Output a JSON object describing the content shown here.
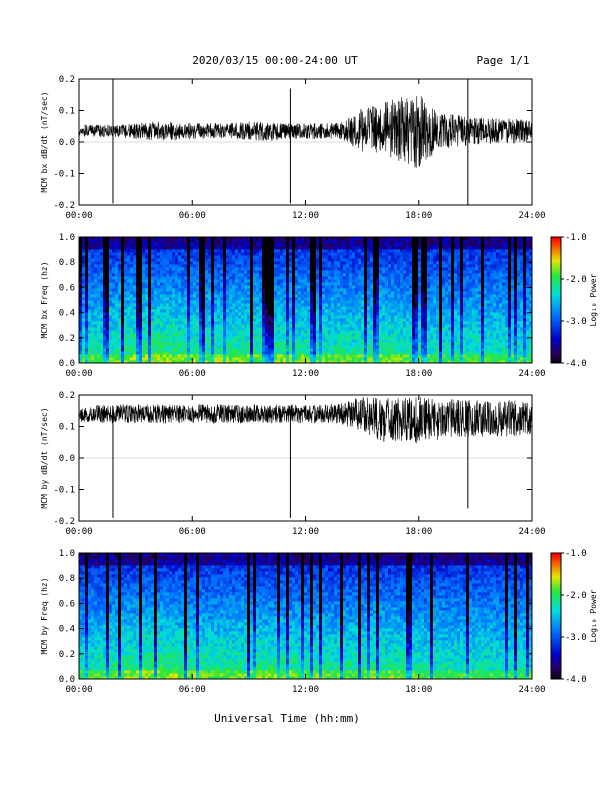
{
  "header": {
    "title": "2020/03/15  00:00-24:00 UT",
    "page": "Page 1/1"
  },
  "footer": {
    "xlabel": "Universal Time (hh:mm)"
  },
  "chart_data": [
    {
      "type": "line",
      "ylabel": "MCM bx dB/dt (nT/sec)",
      "xticks": [
        "00:00",
        "06:00",
        "12:00",
        "18:00",
        "24:00"
      ],
      "yticks": [
        "-0.2",
        "-0.1",
        "0.0",
        "0.1",
        "0.2"
      ],
      "xlim": [
        0,
        24
      ],
      "ylim": [
        -0.2,
        0.2
      ],
      "series": [
        {
          "x": [
            0,
            1,
            2,
            3,
            4,
            5,
            6,
            7,
            8,
            9,
            10,
            11,
            12,
            13,
            14,
            15,
            16,
            17,
            18,
            19,
            20,
            21,
            22,
            23,
            24
          ],
          "center": [
            0.035,
            0.035,
            0.035,
            0.035,
            0.035,
            0.033,
            0.035,
            0.035,
            0.035,
            0.035,
            0.033,
            0.035,
            0.035,
            0.035,
            0.035,
            0.038,
            0.04,
            0.04,
            0.035,
            0.035,
            0.035,
            0.035,
            0.035,
            0.035,
            0.035
          ],
          "envelope": [
            0.02,
            0.02,
            0.02,
            0.025,
            0.03,
            0.03,
            0.025,
            0.025,
            0.025,
            0.03,
            0.03,
            0.025,
            0.025,
            0.025,
            0.03,
            0.07,
            0.08,
            0.11,
            0.12,
            0.06,
            0.05,
            0.045,
            0.04,
            0.04,
            0.035
          ]
        }
      ],
      "spikes": [
        {
          "x": 1.8,
          "min": -0.195,
          "max": 0.2
        },
        {
          "x": 11.2,
          "min": -0.195,
          "max": 0.17
        },
        {
          "x": 20.6,
          "min": -0.2,
          "max": 0.2
        }
      ]
    },
    {
      "type": "heatmap",
      "ylabel": "MCM bx Freq (hz)",
      "colorbar_label": "Log₁₀ Power",
      "xticks": [
        "00:00",
        "06:00",
        "12:00",
        "18:00",
        "24:00"
      ],
      "yticks": [
        "0.0",
        "0.2",
        "0.4",
        "0.6",
        "0.8",
        "1.0"
      ],
      "cticks": [
        "-1.0",
        "-2.0",
        "-3.0",
        "-4.0"
      ],
      "xlim": [
        0,
        24
      ],
      "ylim": [
        0,
        1.0
      ],
      "clim": [
        -4.0,
        -1.0
      ]
    },
    {
      "type": "line",
      "ylabel": "MCM by dB/dt (nT/sec)",
      "xticks": [
        "00:00",
        "06:00",
        "12:00",
        "18:00",
        "24:00"
      ],
      "yticks": [
        "-0.2",
        "-0.1",
        "0.0",
        "0.1",
        "0.2"
      ],
      "xlim": [
        0,
        24
      ],
      "ylim": [
        -0.2,
        0.2
      ],
      "series": [
        {
          "x": [
            0,
            1,
            2,
            3,
            4,
            5,
            6,
            7,
            8,
            9,
            10,
            11,
            12,
            13,
            14,
            15,
            16,
            17,
            18,
            19,
            20,
            21,
            22,
            23,
            24
          ],
          "center": [
            0.135,
            0.14,
            0.14,
            0.14,
            0.14,
            0.14,
            0.14,
            0.14,
            0.14,
            0.14,
            0.14,
            0.14,
            0.14,
            0.14,
            0.14,
            0.14,
            0.12,
            0.12,
            0.12,
            0.12,
            0.13,
            0.125,
            0.125,
            0.125,
            0.125
          ],
          "envelope": [
            0.02,
            0.03,
            0.03,
            0.03,
            0.03,
            0.03,
            0.03,
            0.03,
            0.03,
            0.03,
            0.03,
            0.03,
            0.03,
            0.03,
            0.035,
            0.06,
            0.07,
            0.07,
            0.075,
            0.065,
            0.065,
            0.06,
            0.055,
            0.06,
            0.05
          ]
        }
      ],
      "spikes": [
        {
          "x": 1.8,
          "min": -0.19,
          "max": 0.15
        },
        {
          "x": 11.2,
          "min": -0.19,
          "max": 0.14
        },
        {
          "x": 20.6,
          "min": -0.16,
          "max": 0.15
        }
      ]
    },
    {
      "type": "heatmap",
      "ylabel": "MCM by Freq (hz)",
      "colorbar_label": "Log₁₀ Power",
      "xticks": [
        "00:00",
        "06:00",
        "12:00",
        "18:00",
        "24:00"
      ],
      "yticks": [
        "0.0",
        "0.2",
        "0.4",
        "0.6",
        "0.8",
        "1.0"
      ],
      "cticks": [
        "-1.0",
        "-2.0",
        "-3.0",
        "-4.0"
      ],
      "xlim": [
        0,
        24
      ],
      "ylim": [
        0,
        1.0
      ],
      "clim": [
        -4.0,
        -1.0
      ]
    }
  ]
}
